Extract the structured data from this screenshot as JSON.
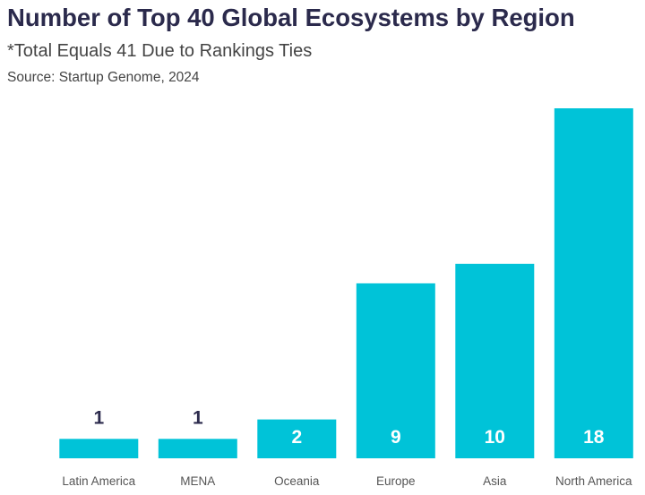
{
  "header": {
    "title": "Number of Top 40 Global Ecosystems by Region",
    "subtitle": "*Total Equals 41 Due to Rankings Ties",
    "source": "Source: Startup Genome, 2024"
  },
  "colors": {
    "bar": "#00c3d8",
    "label_on_bar": "#ffffff",
    "label_above_bar": "#2b2a4c",
    "category_text": "#555555"
  },
  "chart_data": {
    "type": "bar",
    "title": "Number of Top 40 Global Ecosystems by Region",
    "subtitle": "*Total Equals 41 Due to Rankings Ties",
    "xlabel": "",
    "ylabel": "",
    "categories": [
      "Latin America",
      "MENA",
      "Oceania",
      "Europe",
      "Asia",
      "North America"
    ],
    "values": [
      1,
      1,
      2,
      9,
      10,
      18
    ],
    "ylim": [
      0,
      18
    ],
    "grid": false,
    "legend": "none",
    "data_labels": true
  }
}
